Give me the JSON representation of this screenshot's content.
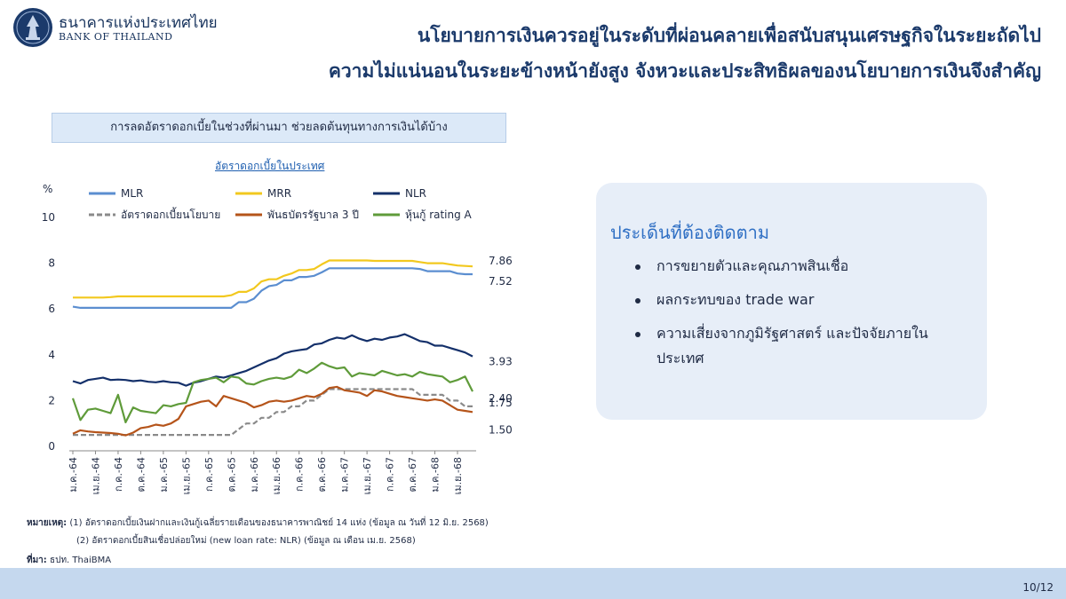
{
  "header": {
    "brand_th": "ธนาคารแห่งประเทศไทย",
    "brand_en": "BANK OF THAILAND",
    "title_line1": "นโยบายการเงินควรอยู่ในระดับที่ผ่อนคลายเพื่อสนับสนุนเศรษฐกิจในระยะถัดไป",
    "title_line2": "ความไม่แน่นอนในระยะข้างหน้ายังสูง จังหวะและประสิทธิผลของนโยบายการเงินจึงสำคัญ"
  },
  "subtitle_box": "การลดอัตราดอกเบี้ยในช่วงที่ผ่านมา ช่วยลดต้นทุนทางการเงินได้บ้าง",
  "chart_data": {
    "type": "line",
    "title": "อัตราดอกเบี้ยในประเทศ",
    "ylabel": "%",
    "ylim": [
      0,
      10
    ],
    "yticks": [
      "0",
      "2",
      "4",
      "6",
      "8",
      "10"
    ],
    "x_tick_labels": [
      "ม.ค.-64",
      "เม.ย.-64",
      "ก.ค.-64",
      "ต.ค.-64",
      "ม.ค.-65",
      "เม.ย.-65",
      "ก.ค.-65",
      "ต.ค.-65",
      "ม.ค.-66",
      "เม.ย.-66",
      "ก.ค.-66",
      "ต.ค.-66",
      "ม.ค.-67",
      "เม.ย.-67",
      "ก.ค.-67",
      "ต.ค.-67",
      "ม.ค.-68",
      "เม.ย.-68"
    ],
    "grid": false,
    "series": [
      {
        "name": "MLR",
        "color": "#5b8ed0",
        "dash": false,
        "end_label": "7.52",
        "values": [
          6.1,
          6.05,
          6.05,
          6.05,
          6.05,
          6.05,
          6.05,
          6.05,
          6.05,
          6.05,
          6.05,
          6.05,
          6.05,
          6.05,
          6.05,
          6.05,
          6.05,
          6.05,
          6.05,
          6.05,
          6.05,
          6.05,
          6.3,
          6.3,
          6.45,
          6.8,
          7.0,
          7.05,
          7.25,
          7.25,
          7.4,
          7.4,
          7.45,
          7.6,
          7.78,
          7.78,
          7.78,
          7.78,
          7.78,
          7.78,
          7.78,
          7.78,
          7.78,
          7.78,
          7.78,
          7.78,
          7.75,
          7.65,
          7.65,
          7.65,
          7.65,
          7.55,
          7.52,
          7.52
        ]
      },
      {
        "name": "MRR",
        "color": "#f2c81e",
        "dash": false,
        "end_label": "7.86",
        "values": [
          6.5,
          6.5,
          6.5,
          6.5,
          6.5,
          6.52,
          6.55,
          6.55,
          6.55,
          6.55,
          6.55,
          6.55,
          6.55,
          6.55,
          6.55,
          6.55,
          6.55,
          6.55,
          6.55,
          6.55,
          6.55,
          6.6,
          6.75,
          6.75,
          6.9,
          7.2,
          7.3,
          7.3,
          7.45,
          7.55,
          7.7,
          7.7,
          7.75,
          7.95,
          8.12,
          8.12,
          8.12,
          8.12,
          8.12,
          8.12,
          8.1,
          8.1,
          8.1,
          8.1,
          8.1,
          8.1,
          8.05,
          8.0,
          8.0,
          8.0,
          7.95,
          7.9,
          7.88,
          7.86
        ]
      },
      {
        "name": "NLR",
        "color": "#14306a",
        "dash": false,
        "end_label": "3.93",
        "values": [
          2.85,
          2.75,
          2.9,
          2.95,
          3.0,
          2.9,
          2.92,
          2.9,
          2.85,
          2.88,
          2.82,
          2.8,
          2.85,
          2.8,
          2.78,
          2.65,
          2.78,
          2.85,
          2.95,
          3.05,
          3.0,
          3.1,
          3.2,
          3.3,
          3.45,
          3.6,
          3.75,
          3.85,
          4.05,
          4.15,
          4.2,
          4.25,
          4.45,
          4.5,
          4.65,
          4.75,
          4.7,
          4.85,
          4.7,
          4.6,
          4.7,
          4.65,
          4.75,
          4.8,
          4.9,
          4.75,
          4.6,
          4.55,
          4.4,
          4.4,
          4.3,
          4.2,
          4.1,
          3.93
        ]
      },
      {
        "name": "อัตราดอกเบี้ยนโยบาย",
        "color": "#8a8a8a",
        "dash": true,
        "end_label": "1.75",
        "values": [
          0.5,
          0.5,
          0.5,
          0.5,
          0.5,
          0.5,
          0.5,
          0.5,
          0.5,
          0.5,
          0.5,
          0.5,
          0.5,
          0.5,
          0.5,
          0.5,
          0.5,
          0.5,
          0.5,
          0.5,
          0.5,
          0.5,
          0.75,
          1.0,
          1.0,
          1.25,
          1.25,
          1.5,
          1.5,
          1.75,
          1.75,
          2.0,
          2.0,
          2.25,
          2.5,
          2.5,
          2.5,
          2.5,
          2.5,
          2.5,
          2.5,
          2.5,
          2.5,
          2.5,
          2.5,
          2.5,
          2.25,
          2.25,
          2.25,
          2.25,
          2.0,
          2.0,
          1.75,
          1.75
        ]
      },
      {
        "name": "พันธบัตรรัฐบาล 3 ปี",
        "color": "#b5541a",
        "dash": false,
        "end_label": "1.50",
        "values": [
          0.55,
          0.7,
          0.65,
          0.62,
          0.6,
          0.58,
          0.55,
          0.48,
          0.6,
          0.8,
          0.85,
          0.95,
          0.9,
          1.0,
          1.2,
          1.75,
          1.85,
          1.95,
          2.0,
          1.75,
          2.2,
          2.1,
          2.0,
          1.9,
          1.7,
          1.8,
          1.95,
          2.0,
          1.95,
          2.0,
          2.1,
          2.2,
          2.15,
          2.3,
          2.55,
          2.6,
          2.45,
          2.4,
          2.35,
          2.2,
          2.45,
          2.4,
          2.3,
          2.2,
          2.15,
          2.1,
          2.05,
          2.0,
          2.05,
          2.0,
          1.8,
          1.6,
          1.55,
          1.5
        ]
      },
      {
        "name": "หุ้นกู้ rating A",
        "color": "#5f9b3a",
        "dash": false,
        "end_label": "2.40",
        "values": [
          2.1,
          1.15,
          1.6,
          1.65,
          1.55,
          1.45,
          2.25,
          1.05,
          1.7,
          1.55,
          1.5,
          1.45,
          1.8,
          1.75,
          1.85,
          1.9,
          2.8,
          2.9,
          2.95,
          3.0,
          2.8,
          3.05,
          3.0,
          2.75,
          2.7,
          2.85,
          2.95,
          3.0,
          2.95,
          3.05,
          3.35,
          3.2,
          3.4,
          3.65,
          3.5,
          3.4,
          3.45,
          3.05,
          3.2,
          3.15,
          3.1,
          3.3,
          3.2,
          3.1,
          3.15,
          3.05,
          3.25,
          3.15,
          3.1,
          3.05,
          2.8,
          2.9,
          3.05,
          2.4
        ]
      }
    ]
  },
  "watch_box": {
    "heading": "ประเด็นที่ต้องติดตาม",
    "items": [
      "การขยายตัวและคุณภาพสินเชื่อ",
      "ผลกระทบของ trade war",
      "ความเสี่ยงจากภูมิรัฐศาสตร์ และปัจจัยภายในประเทศ"
    ]
  },
  "notes": {
    "note_label": "หมายเหตุ:",
    "note1": "(1) อัตราดอกเบี้ยเงินฝากและเงินกู้เฉลี่ยรายเดือนของธนาคารพาณิชย์ 14 แห่ง (ข้อมูล ณ วันที่ 12 มิ.ย. 2568)",
    "note2": "(2) อัตราดอกเบี้ยสินเชื่อปล่อยใหม่ (new loan rate: NLR) (ข้อมูล ณ เดือน เม.ย. 2568)",
    "source_label": "ที่มา:",
    "source": "ธปท. ThaiBMA"
  },
  "footer": {
    "page": "10/12"
  },
  "colors": {
    "title": "#1b3a6b",
    "accent": "#2f6fc4",
    "footer": "#c5d8ee"
  }
}
